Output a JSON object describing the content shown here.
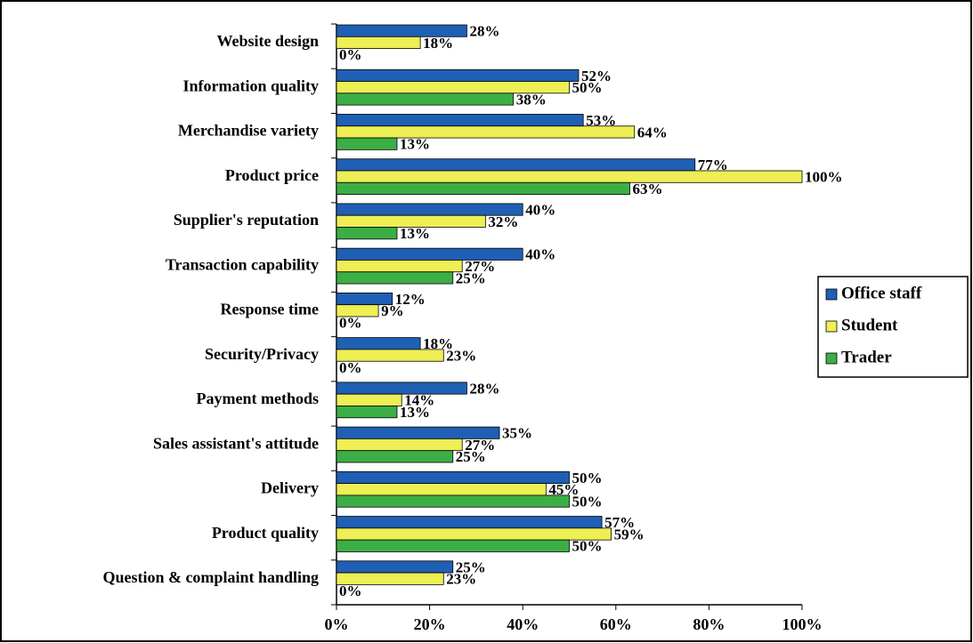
{
  "chart_data": {
    "type": "bar",
    "orientation": "horizontal",
    "categories": [
      "Website design",
      "Information quality",
      "Merchandise variety",
      "Product price",
      "Supplier's reputation",
      "Transaction capability",
      "Response time",
      "Security/Privacy",
      "Payment methods",
      "Sales assistant's attitude",
      "Delivery",
      "Product quality",
      "Question & complaint handling"
    ],
    "series": [
      {
        "name": "Office staff",
        "color": "#1f5fb4",
        "values": [
          28,
          52,
          53,
          77,
          40,
          40,
          12,
          18,
          28,
          35,
          50,
          57,
          25
        ],
        "value_labels": [
          "28%",
          "52%",
          "53%",
          "77%",
          "40%",
          "40%",
          "12%",
          "18%",
          "28%",
          "35%",
          "50%",
          "57%",
          "25%"
        ]
      },
      {
        "name": "Student",
        "color": "#eeee55",
        "values": [
          18,
          50,
          64,
          100,
          32,
          27,
          9,
          23,
          14,
          27,
          45,
          59,
          23
        ],
        "value_labels": [
          "18%",
          "50%",
          "64%",
          "100%",
          "32%",
          "27%",
          "9%",
          "23%",
          "14%",
          "27%",
          "45%",
          "59%",
          "23%"
        ]
      },
      {
        "name": "Trader",
        "color": "#3cae46",
        "values": [
          0,
          38,
          13,
          63,
          13,
          25,
          0,
          0,
          13,
          25,
          50,
          50,
          0
        ],
        "value_labels": [
          "0%",
          "38%",
          "13%",
          "63%",
          "13%",
          "25%",
          "0%",
          "0%",
          "13%",
          "25%",
          "50%",
          "50%",
          "0%"
        ]
      }
    ],
    "xlim": [
      0,
      100
    ],
    "xticks": [
      {
        "value": 0,
        "label": "0%"
      },
      {
        "value": 20,
        "label": "20%"
      },
      {
        "value": 40,
        "label": "40%"
      },
      {
        "value": 60,
        "label": "60%"
      },
      {
        "value": 80,
        "label": "80%"
      },
      {
        "value": 100,
        "label": "100%"
      }
    ],
    "legend": "right"
  }
}
